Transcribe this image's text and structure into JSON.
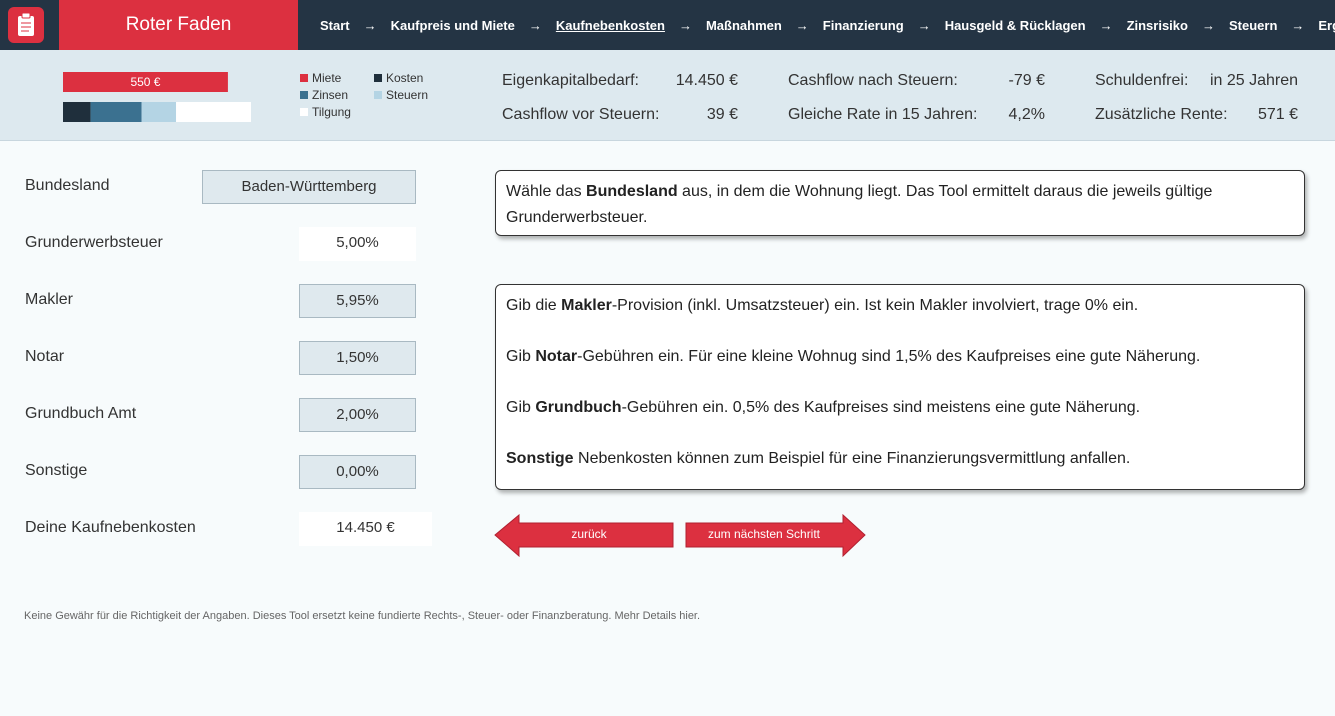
{
  "header": {
    "app_title": "Roter Faden",
    "steps": [
      "Start",
      "Kaufpreis und Miete",
      "Kaufnebenkosten",
      "Maßnahmen",
      "Finanzierung",
      "Hausgeld & Rücklagen",
      "Zinsrisiko",
      "Steuern",
      "Ergebnis"
    ],
    "active_step": 2
  },
  "summary": {
    "mini_chart": {
      "type": "bar",
      "income": {
        "name": "Miete",
        "color": "#dc3040",
        "value": 550,
        "value_label": "550 €"
      },
      "series": [
        {
          "name": "Kosten",
          "color": "#1f2f3c",
          "value": 92
        },
        {
          "name": "Zinsen",
          "color": "#3b7190",
          "value": 170
        },
        {
          "name": "Steuern",
          "color": "#b4d4e4",
          "value": 115
        },
        {
          "name": "Tilgung",
          "color": "#ffffff",
          "value": 250
        }
      ]
    },
    "kpis": [
      {
        "label": "Eigenkapitalbedarf:",
        "value": "14.450 €"
      },
      {
        "label": "Cashflow vor Steuern:",
        "value": "39 €"
      },
      {
        "label": "Cashflow nach Steuern:",
        "value": "-79 €"
      },
      {
        "label": "Gleiche Rate in 15 Jahren:",
        "value": "4,2%"
      },
      {
        "label": "Schuldenfrei:",
        "value": "in 25 Jahren"
      },
      {
        "label": "Zusätzliche Rente:",
        "value": "571 €"
      }
    ]
  },
  "form": {
    "rows": [
      {
        "label": "Bundesland",
        "value": "Baden-Württemberg"
      },
      {
        "label": "Grunderwerbsteuer",
        "value": "5,00%"
      },
      {
        "label": "Makler",
        "value": "5,95%"
      },
      {
        "label": "Notar",
        "value": "1,50%"
      },
      {
        "label": "Grundbuch Amt",
        "value": "2,00%"
      },
      {
        "label": "Sonstige",
        "value": "0,00%"
      },
      {
        "label": "Deine Kaufnebenkosten",
        "value": "14.450 €"
      }
    ]
  },
  "info": {
    "box1": [
      [
        {
          "t": "Wähle das "
        },
        {
          "b": "Bundesland"
        },
        {
          "t": " aus, in dem die Wohnung liegt. Das Tool ermittelt daraus die jeweils gültige Grunderwerbsteuer."
        }
      ]
    ],
    "box2": [
      [
        {
          "t": "Gib die "
        },
        {
          "b": "Makler"
        },
        {
          "t": "-Provision (inkl. Umsatzsteuer) ein. Ist kein Makler involviert, trage 0% ein."
        }
      ],
      [
        {
          "t": "Gib "
        },
        {
          "b": "Notar"
        },
        {
          "t": "-Gebühren ein. Für eine kleine Wohnug sind 1,5% des Kaufpreises eine gute Näherung."
        }
      ],
      [
        {
          "t": "Gib "
        },
        {
          "b": "Grundbuch"
        },
        {
          "t": "-Gebühren ein. 0,5% des Kaufpreises sind meistens eine gute Näherung."
        }
      ],
      [
        {
          "b": "Sonstige"
        },
        {
          "t": " Nebenkosten können zum Beispiel für eine Finanzierungsvermittlung anfallen."
        }
      ]
    ]
  },
  "buttons": {
    "back": "zurück",
    "next": "zum nächsten Schritt"
  },
  "footer": "Keine Gewähr für die Richtigkeit der Angaben. Dieses Tool ersetzt keine fundierte Rechts-, Steuer- oder Finanzberatung. Mehr Details hier."
}
